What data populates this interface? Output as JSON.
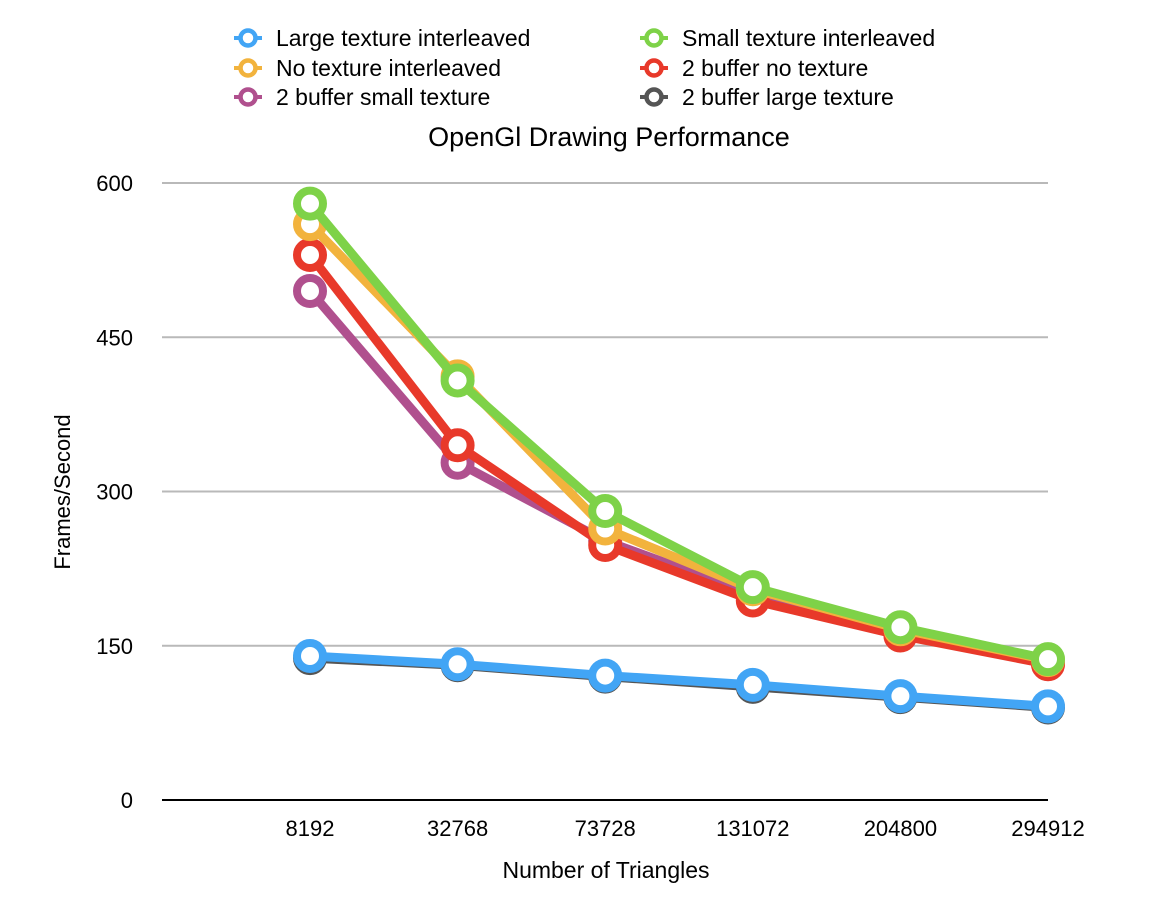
{
  "chart_data": {
    "type": "line",
    "title": "OpenGl Drawing Performance",
    "xlabel": "Number of Triangles",
    "ylabel": "Frames/Second",
    "ylim": [
      0,
      600
    ],
    "yticks": [
      "0",
      "150",
      "300",
      "450",
      "600"
    ],
    "categories": [
      "8192",
      "32768",
      "73728",
      "131072",
      "204800",
      "294912"
    ],
    "grid": true,
    "legend_position": "top",
    "series": [
      {
        "name": "2 buffer large texture",
        "color": "#555555",
        "values": [
          138,
          131,
          120,
          110,
          100,
          90
        ]
      },
      {
        "name": "Large texture interleaved",
        "color": "#42a5f5",
        "values": [
          140,
          132,
          121,
          112,
          101,
          91
        ]
      },
      {
        "name": "2 buffer small texture",
        "color": "#b0508e",
        "values": [
          495,
          328,
          252,
          200,
          164,
          133
        ]
      },
      {
        "name": "2 buffer no texture",
        "color": "#e8392a",
        "values": [
          530,
          345,
          248,
          194,
          160,
          132
        ]
      },
      {
        "name": "No texture interleaved",
        "color": "#f2b33d",
        "values": [
          560,
          412,
          264,
          205,
          166,
          136
        ]
      },
      {
        "name": "Small texture interleaved",
        "color": "#7ed248",
        "values": [
          580,
          408,
          281,
          207,
          168,
          137
        ]
      }
    ],
    "legend_order": [
      "Large texture interleaved",
      "Small texture interleaved",
      "No texture interleaved",
      "2 buffer no texture",
      "2 buffer small texture",
      "2 buffer large texture"
    ]
  }
}
